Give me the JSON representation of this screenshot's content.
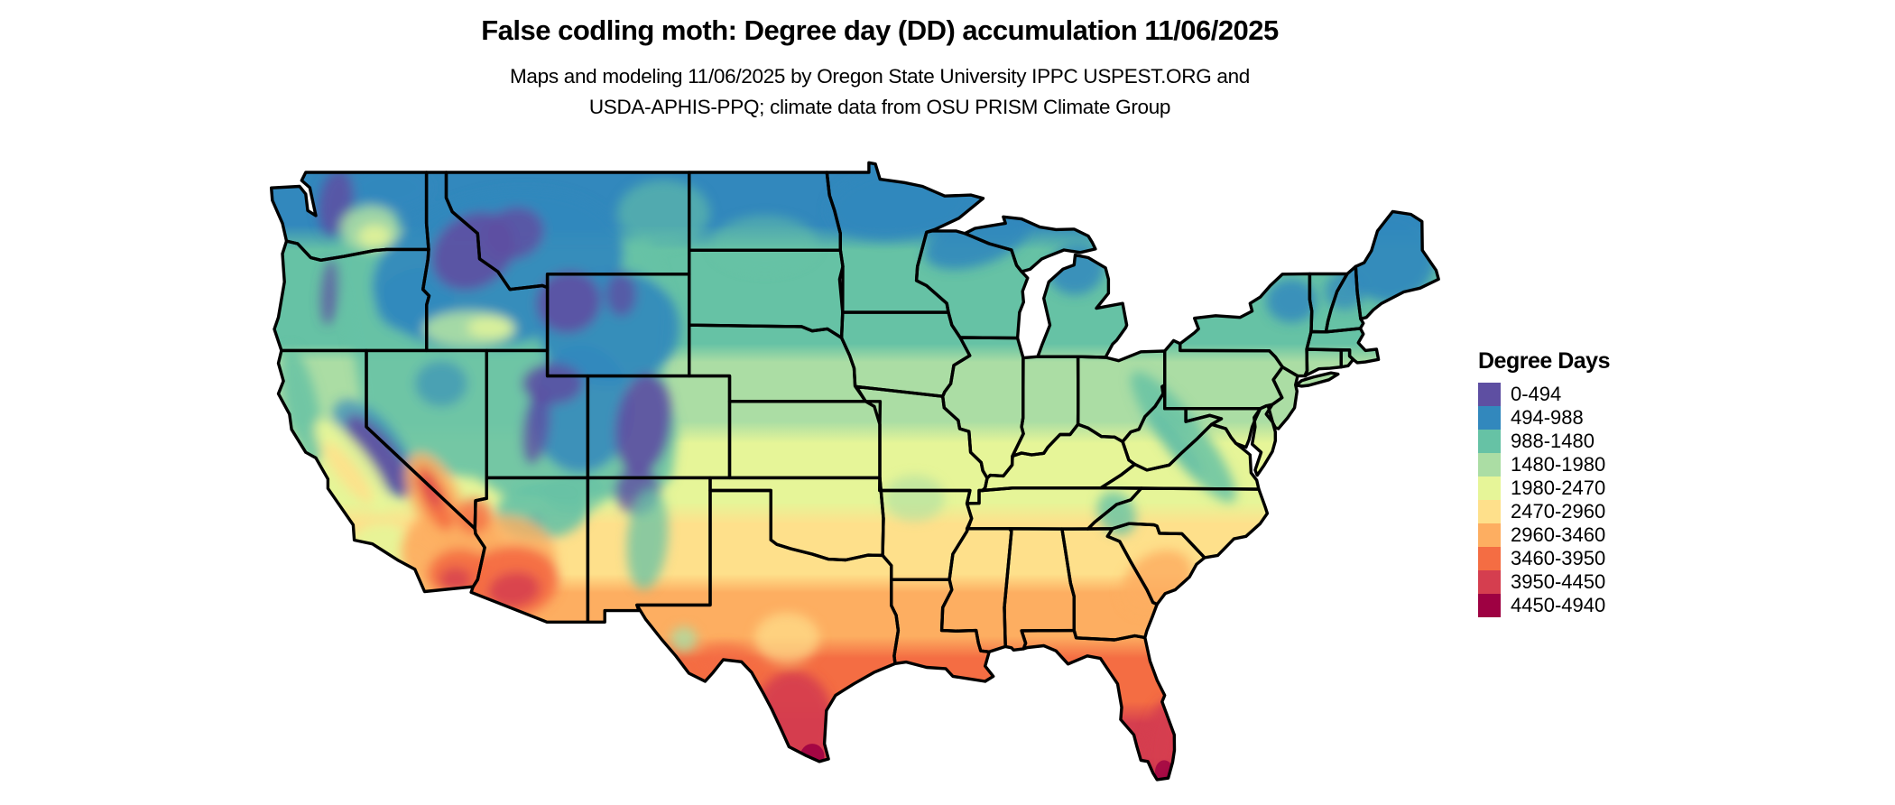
{
  "header": {
    "title": "False codling moth: Degree day (DD) accumulation 11/06/2025",
    "subtitle_line1": "Maps and modeling 11/06/2025 by Oregon State University IPPC USPEST.ORG and",
    "subtitle_line2": "USDA-APHIS-PPQ; climate data from OSU PRISM Climate Group"
  },
  "legend": {
    "title": "Degree Days",
    "entries": [
      {
        "label": "0-494",
        "color": "#5e4fa2"
      },
      {
        "label": "494-988",
        "color": "#3288bd"
      },
      {
        "label": "988-1480",
        "color": "#66c2a5"
      },
      {
        "label": "1480-1980",
        "color": "#abdda4"
      },
      {
        "label": "1980-2470",
        "color": "#e6f598"
      },
      {
        "label": "2470-2960",
        "color": "#fee08b"
      },
      {
        "label": "2960-3460",
        "color": "#fdae61"
      },
      {
        "label": "3460-3950",
        "color": "#f46d43"
      },
      {
        "label": "3950-4450",
        "color": "#d53e4f"
      },
      {
        "label": "4450-4940",
        "color": "#9e0142"
      }
    ]
  },
  "chart_data": {
    "type": "heatmap",
    "subtype": "classed raster choropleth map",
    "region": "Contiguous United States with state boundaries",
    "title": "False codling moth: Degree day (DD) accumulation 11/06/2025",
    "variable": "Degree Days",
    "date_shown": "11/06/2025",
    "classes": [
      {
        "range": "0-494",
        "color": "#5e4fa2"
      },
      {
        "range": "494-988",
        "color": "#3288bd"
      },
      {
        "range": "988-1480",
        "color": "#66c2a5"
      },
      {
        "range": "1480-1980",
        "color": "#abdda4"
      },
      {
        "range": "1980-2470",
        "color": "#e6f598"
      },
      {
        "range": "2470-2960",
        "color": "#fee08b"
      },
      {
        "range": "2960-3460",
        "color": "#fdae61"
      },
      {
        "range": "3460-3950",
        "color": "#f46d43"
      },
      {
        "range": "3950-4450",
        "color": "#d53e4f"
      },
      {
        "range": "4450-4940",
        "color": "#9e0142"
      }
    ],
    "value_pattern": "Low accumulations (purple/blue) across the northern tier, Rockies, Cascades and Sierra Nevada; mid values (teal/green/yellow) across the Midwest, Northeast and mid-South; high accumulations (orange/red/maroon) in the desert Southwest, southern Texas, Gulf Coast and peninsular Florida",
    "legend_position": "right"
  }
}
